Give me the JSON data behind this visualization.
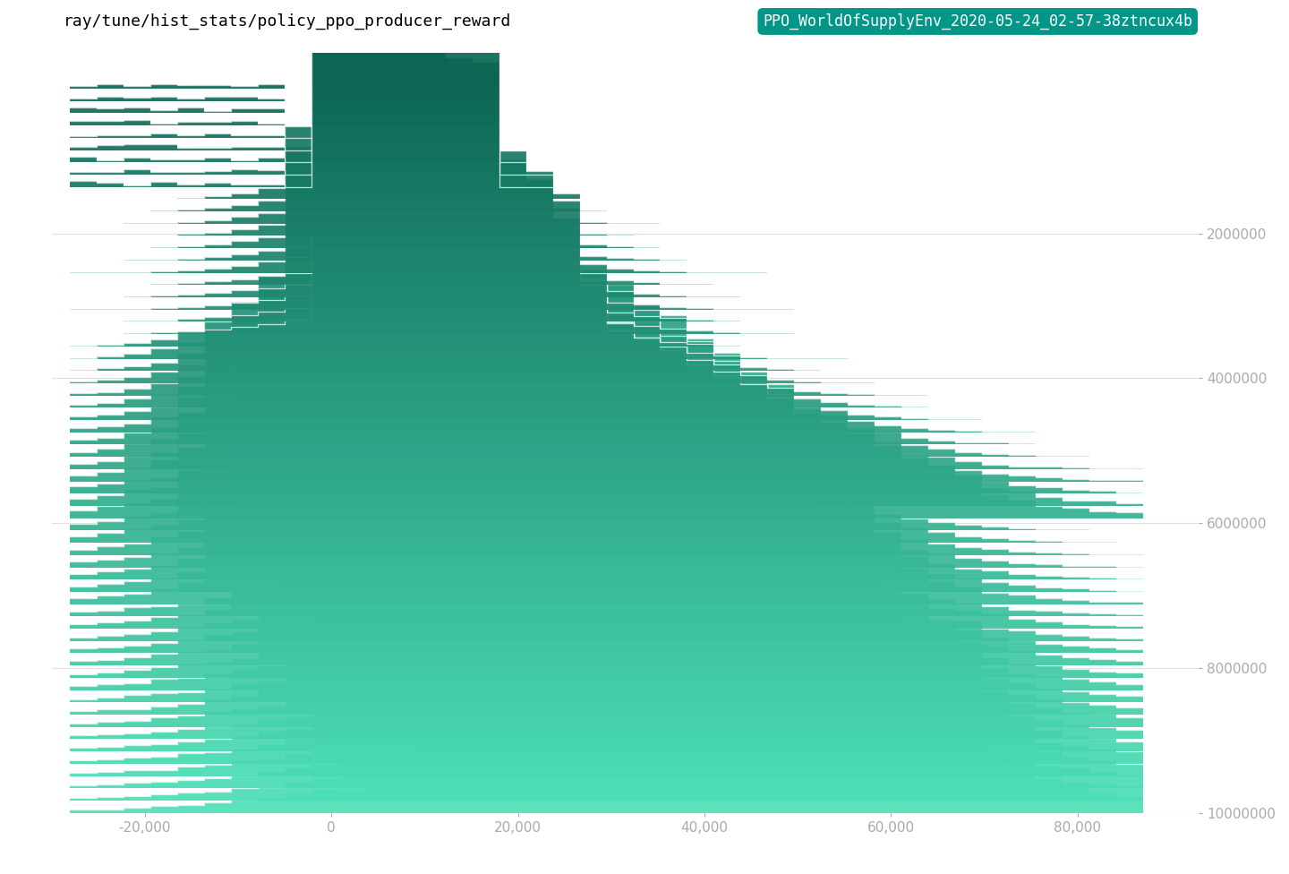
{
  "title_left": "ray/tune/hist_stats/policy_ppo_producer_reward",
  "title_right": "PPO_WorldOfSupplyEnv_2020-05-24_02-57-38ztncux4b",
  "title_right_bg": "#009688",
  "title_right_color": "#ffffff",
  "background_color": "#ffffff",
  "x_ticks": [
    -20000,
    0,
    20000,
    40000,
    60000,
    80000
  ],
  "x_tick_labels": [
    "-20,000",
    "0",
    "20,000",
    "40,000",
    "60,000",
    "80,000"
  ],
  "y_ticks": [
    2000000,
    4000000,
    6000000,
    8000000,
    10000000
  ],
  "y_tick_labels": [
    "2000000",
    "4000000",
    "6000000",
    "8000000",
    "10000000"
  ],
  "x_range": [
    -30000,
    93000
  ],
  "y_range": [
    0,
    10000000
  ],
  "n_traces": 60,
  "color_early": [
    0.05,
    0.4,
    0.33
  ],
  "color_late": [
    0.3,
    0.88,
    0.72
  ],
  "line_color": "white",
  "line_alpha": 0.75,
  "line_width": 0.9,
  "grid_color": "#cccccc",
  "grid_alpha": 0.6,
  "tick_color": "#aaaaaa",
  "tick_fontsize": 11
}
